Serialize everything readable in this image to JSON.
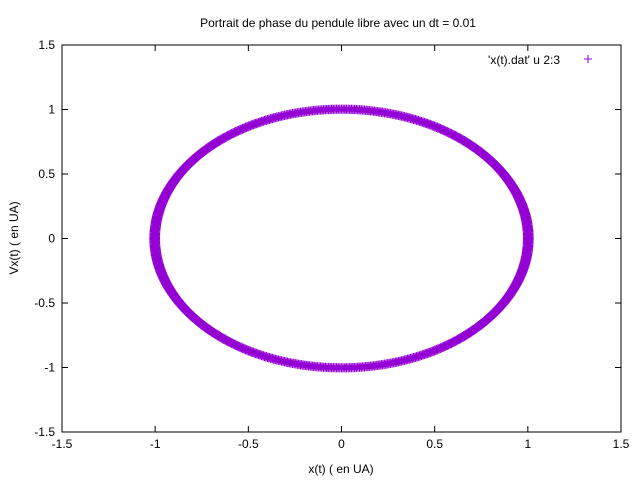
{
  "chart_data": {
    "type": "scatter",
    "title": "Portrait de phase du pendule libre avec un dt = 0.01",
    "xlabel": "x(t) ( en UA)",
    "ylabel": "Vx(t) ( en UA)",
    "xlim": [
      -1.5,
      1.5
    ],
    "ylim": [
      -1.5,
      1.5
    ],
    "xticks": [
      "-1.5",
      "-1",
      "-0.5",
      "0",
      "0.5",
      "1",
      "1.5"
    ],
    "yticks": [
      "-1.5",
      "-1",
      "-0.5",
      "0",
      "0.5",
      "1",
      "1.5"
    ],
    "grid": false,
    "legend_position": "top-right",
    "series": [
      {
        "name": "'x(t).dat' u 2:3",
        "color": "#9400d3",
        "marker": "plus",
        "shape": "ring",
        "center": [
          0,
          0
        ],
        "radius_inner": 0.99,
        "radius_outer": 1.015
      }
    ]
  }
}
